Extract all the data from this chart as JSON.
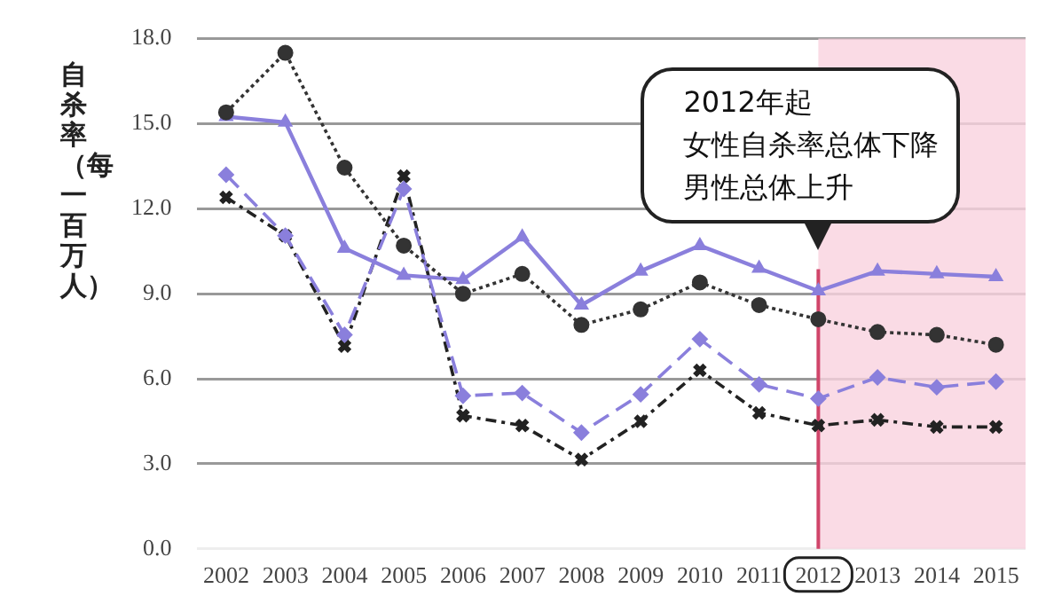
{
  "chart_data": {
    "type": "line",
    "ylabel": "自杀率（每一百万人）",
    "categories": [
      "2002",
      "2003",
      "2004",
      "2005",
      "2006",
      "2007",
      "2008",
      "2009",
      "2010",
      "2011",
      "2012",
      "2013",
      "2014",
      "2015"
    ],
    "series": [
      {
        "color": "#333333",
        "marker": "circle",
        "line_style": "dotted",
        "values": [
          15.4,
          17.5,
          13.45,
          10.7,
          9.0,
          9.7,
          7.9,
          8.45,
          9.4,
          8.6,
          8.1,
          7.65,
          7.55,
          7.2
        ]
      },
      {
        "color": "#8a7fdc",
        "marker": "triangle",
        "line_style": "solid",
        "values": [
          15.25,
          15.05,
          10.6,
          9.65,
          9.5,
          11.0,
          8.6,
          9.8,
          10.7,
          9.9,
          9.1,
          9.8,
          9.7,
          9.6
        ]
      },
      {
        "color": "#8a7fdc",
        "marker": "diamond",
        "line_style": "dashed",
        "values": [
          13.2,
          11.05,
          7.55,
          12.7,
          5.4,
          5.5,
          4.1,
          5.45,
          7.4,
          5.8,
          5.3,
          6.05,
          5.7,
          5.9
        ]
      },
      {
        "color": "#222222",
        "marker": "cross",
        "line_style": "dashdot",
        "values": [
          12.4,
          11.05,
          7.15,
          13.15,
          4.7,
          4.35,
          3.15,
          4.5,
          6.3,
          4.8,
          4.35,
          4.55,
          4.3,
          4.3
        ]
      }
    ],
    "ylim": [
      0,
      18
    ],
    "yticks": [
      {
        "value": 0,
        "label": "0.0"
      },
      {
        "value": 3,
        "label": "3.0"
      },
      {
        "value": 6,
        "label": "6.0"
      },
      {
        "value": 9,
        "label": "9.0"
      },
      {
        "value": 12,
        "label": "12.0"
      },
      {
        "value": 15,
        "label": "15.0"
      },
      {
        "value": 18,
        "label": "18.0"
      }
    ],
    "grid": "y",
    "legend": false,
    "ref_lines": [
      {
        "axis": "x",
        "value": "2012",
        "color": "#d0456a"
      }
    ],
    "bands": [
      {
        "axis": "x",
        "from": "2012",
        "to": "2015",
        "color": "#f9d2de"
      }
    ],
    "annotations": [
      "2012年起",
      "女性自杀率总体下降",
      "男性总体上升"
    ]
  }
}
